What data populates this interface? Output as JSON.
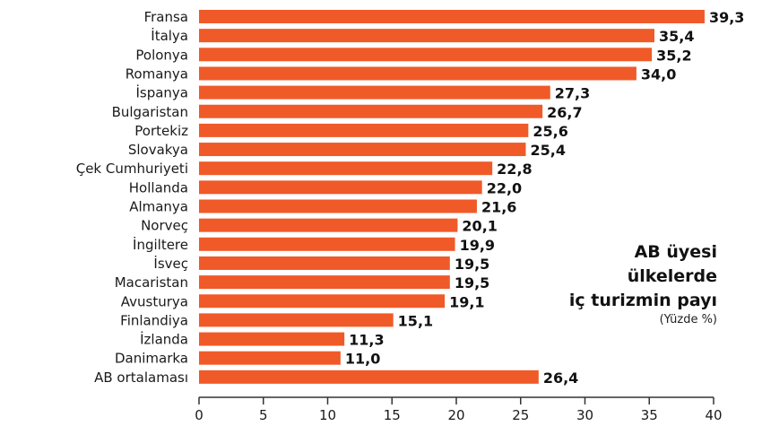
{
  "chart_data": {
    "type": "bar",
    "orientation": "horizontal",
    "title_lines": [
      "AB üyesi",
      "ülkelerde",
      "iç turizmin payı"
    ],
    "subtitle": "(Yüzde %)",
    "categories": [
      "Fransa",
      "İtalya",
      "Polonya",
      "Romanya",
      "İspanya",
      "Bulgaristan",
      "Portekiz",
      "Slovakya",
      "Çek Cumhuriyeti",
      "Hollanda",
      "Almanya",
      "Norveç",
      "İngiltere",
      "İsveç",
      "Macaristan",
      "Avusturya",
      "Finlandiya",
      "İzlanda",
      "Danimarka",
      "AB ortalaması"
    ],
    "values": [
      39.3,
      35.4,
      35.2,
      34.0,
      27.3,
      26.7,
      25.6,
      25.4,
      22.8,
      22.0,
      21.6,
      20.1,
      19.9,
      19.5,
      19.5,
      19.1,
      15.1,
      11.3,
      11.0,
      26.4
    ],
    "value_labels": [
      "39,3",
      "35,4",
      "35,2",
      "34,0",
      "27,3",
      "26,7",
      "25,6",
      "25,4",
      "22,8",
      "22,0",
      "21,6",
      "20,1",
      "19,9",
      "19,5",
      "19,5",
      "19,1",
      "15,1",
      "11,3",
      "11,0",
      "26,4"
    ],
    "xlim": [
      0,
      40
    ],
    "xticks": [
      0,
      5,
      10,
      15,
      20,
      25,
      30,
      35,
      40
    ],
    "bar_color": "#f05a28",
    "grid": false
  }
}
